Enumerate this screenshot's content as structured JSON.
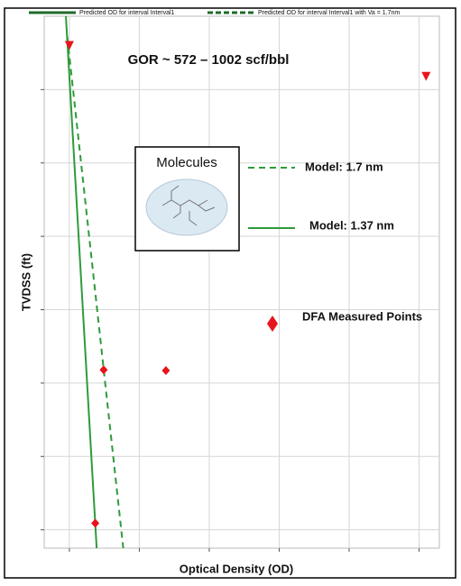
{
  "chart_data": {
    "type": "line",
    "title": "GOR ~ 572 – 1002 scf/bbl",
    "x_label": "Optical Density (OD)",
    "y_label": "TVDSS (ft)",
    "inset_label": "Molecules",
    "annotations": [
      "Model: 1.7 nm",
      "Model: 1.37 nm",
      "DFA Measured Points"
    ],
    "xlim": [
      -0.36,
      5.29
    ],
    "xticks": [
      0,
      1,
      2,
      3,
      4,
      5
    ],
    "ylim": [
      -1,
      6.25
    ],
    "yticks": [
      0,
      1,
      2,
      3,
      4,
      5,
      6
    ],
    "y_inverted": true,
    "grid": true,
    "series": [
      {
        "name": "Predicted OD for interval Interval1",
        "color": "#2e9b3a",
        "style": "solid",
        "x": [
          -0.05,
          0.39
        ],
        "values": [
          -1,
          6.25
        ]
      },
      {
        "name": "Predicted OD for interval Interval1 with Va = 1.7nm",
        "color": "#2e9b3a",
        "style": "dashed",
        "x": [
          -0.03,
          0.77
        ],
        "values": [
          -0.72,
          6.25
        ]
      },
      {
        "color": "#e8141c",
        "style": "none",
        "marker": "triangle-down",
        "x": [
          0,
          5.1
        ],
        "values": [
          -0.6,
          -0.18
        ]
      },
      {
        "color": "#e8141c",
        "style": "none",
        "marker": "diamond",
        "x": [
          0.49,
          1.38,
          0.37
        ],
        "values": [
          3.82,
          3.83,
          5.91
        ]
      }
    ]
  }
}
